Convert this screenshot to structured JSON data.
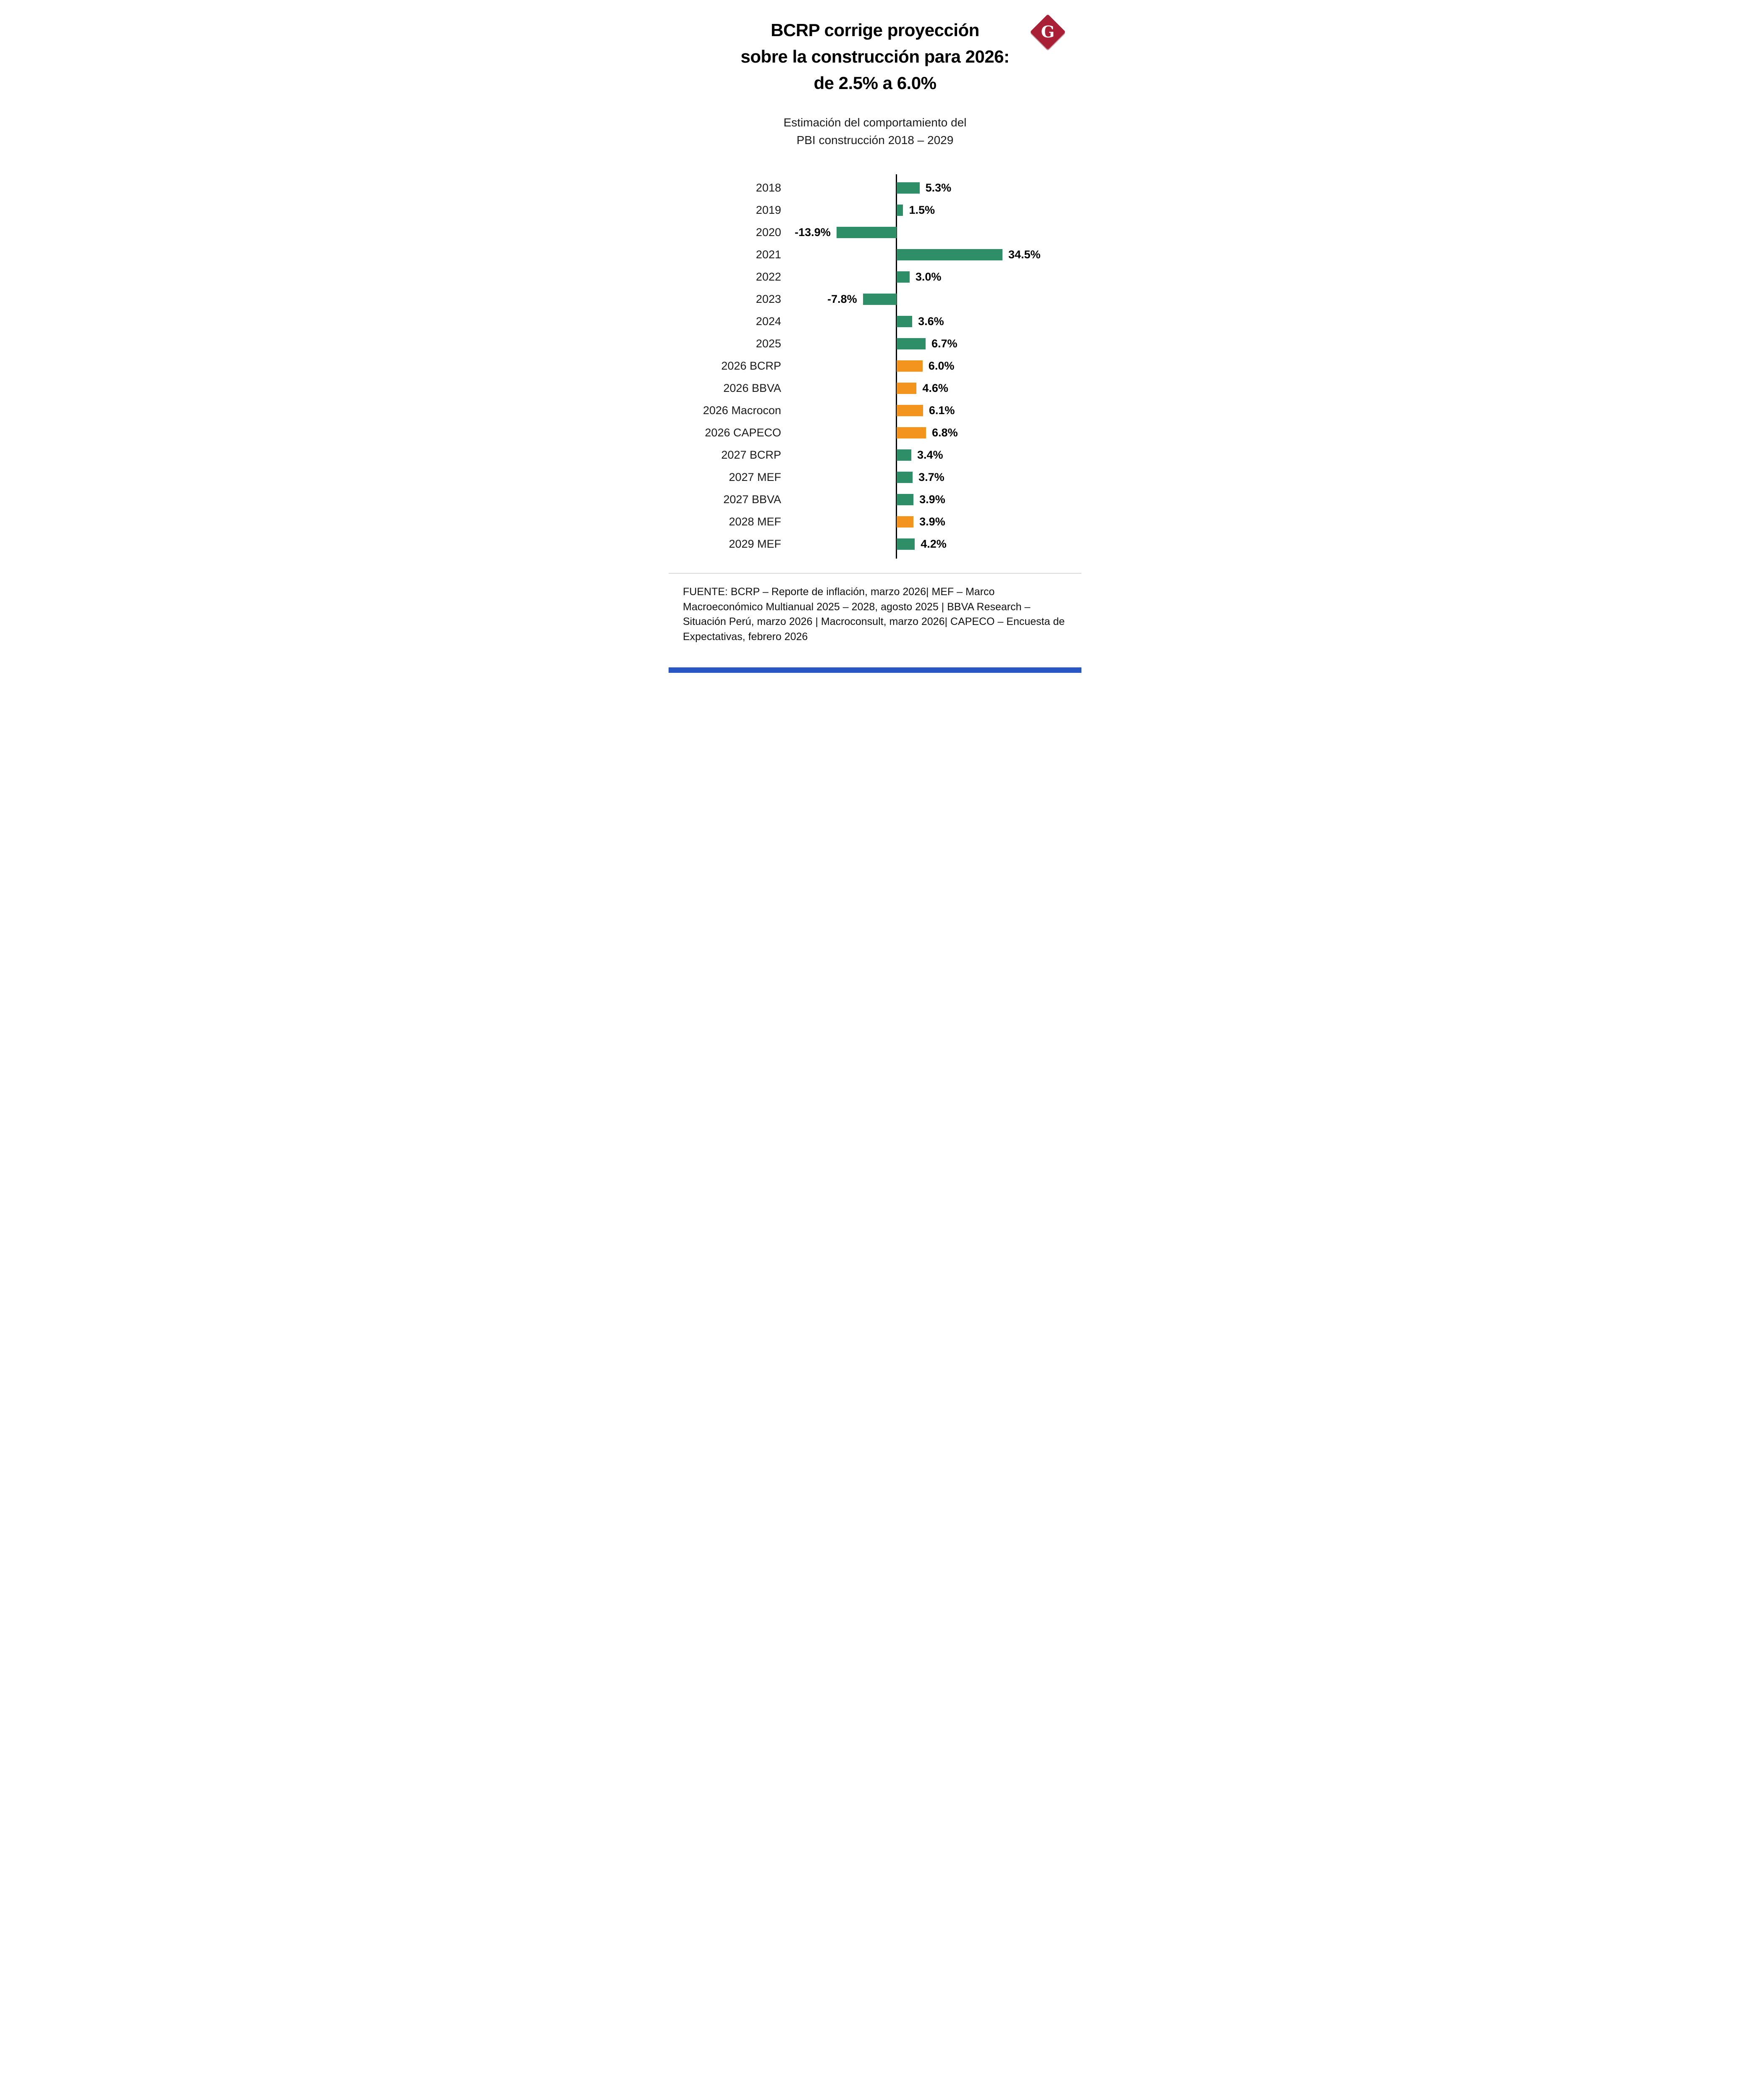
{
  "logo": {
    "letter": "G"
  },
  "headline": {
    "lines": [
      "BCRP corrige proyección",
      "sobre la construcción para 2026:",
      "de 2.5% a 6.0%"
    ]
  },
  "chart_title": {
    "lines": [
      "Estimación del comportamiento del",
      "PBI construcción 2018 – 2029"
    ]
  },
  "colors": {
    "green": "#2e8e67",
    "orange": "#f3941e",
    "logo_red": "#a92036",
    "accent_blue": "#2857c4"
  },
  "chart_data": {
    "type": "bar",
    "orientation": "horizontal",
    "title": "Estimación del comportamiento del PBI construcción 2018 – 2029",
    "unit": "%",
    "xlim": [
      -15,
      36
    ],
    "grid": false,
    "legend": "none",
    "categories": [
      "2018",
      "2019",
      "2020",
      "2021",
      "2022",
      "2023",
      "2024",
      "2025",
      "2026 BCRP",
      "2026 BBVA",
      "2026 Macrocon",
      "2026 CAPECO",
      "2027 BCRP",
      "2027 MEF",
      "2027 BBVA",
      "2028 MEF",
      "2029 MEF"
    ],
    "values": [
      5.3,
      1.5,
      -13.9,
      34.5,
      3.0,
      -7.8,
      3.6,
      6.7,
      6.0,
      4.6,
      6.1,
      6.8,
      3.4,
      3.7,
      3.9,
      3.9,
      4.2
    ],
    "bars": [
      {
        "label": "2018",
        "value": 5.3,
        "display": "5.3%",
        "color": "green"
      },
      {
        "label": "2019",
        "value": 1.5,
        "display": "1.5%",
        "color": "green"
      },
      {
        "label": "2020",
        "value": -13.9,
        "display": "-13.9%",
        "color": "green"
      },
      {
        "label": "2021",
        "value": 34.5,
        "display": "34.5%",
        "color": "green"
      },
      {
        "label": "2022",
        "value": 3.0,
        "display": "3.0%",
        "color": "green"
      },
      {
        "label": "2023",
        "value": -7.8,
        "display": "-7.8%",
        "color": "green"
      },
      {
        "label": "2024",
        "value": 3.6,
        "display": "3.6%",
        "color": "green"
      },
      {
        "label": "2025",
        "value": 6.7,
        "display": "6.7%",
        "color": "green"
      },
      {
        "label": "2026 BCRP",
        "value": 6.0,
        "display": "6.0%",
        "color": "orange"
      },
      {
        "label": "2026 BBVA",
        "value": 4.6,
        "display": "4.6%",
        "color": "orange"
      },
      {
        "label": "2026 Macrocon",
        "value": 6.1,
        "display": "6.1%",
        "color": "orange"
      },
      {
        "label": "2026 CAPECO",
        "value": 6.8,
        "display": "6.8%",
        "color": "orange"
      },
      {
        "label": "2027 BCRP",
        "value": 3.4,
        "display": "3.4%",
        "color": "green"
      },
      {
        "label": "2027 MEF",
        "value": 3.7,
        "display": "3.7%",
        "color": "green"
      },
      {
        "label": "2027 BBVA",
        "value": 3.9,
        "display": "3.9%",
        "color": "green"
      },
      {
        "label": "2028 MEF",
        "value": 3.9,
        "display": "3.9%",
        "color": "orange"
      },
      {
        "label": "2029 MEF",
        "value": 4.2,
        "display": "4.2%",
        "color": "green"
      }
    ]
  },
  "footer": {
    "source": "FUENTE:  BCRP – Reporte de inflación, marzo 2026| MEF – Marco Macroeconómico Multianual 2025 – 2028, agosto 2025 | BBVA Research – Situación Perú, marzo 2026 | Macroconsult, marzo 2026| CAPECO – Encuesta de Expectativas, febrero 2026"
  }
}
